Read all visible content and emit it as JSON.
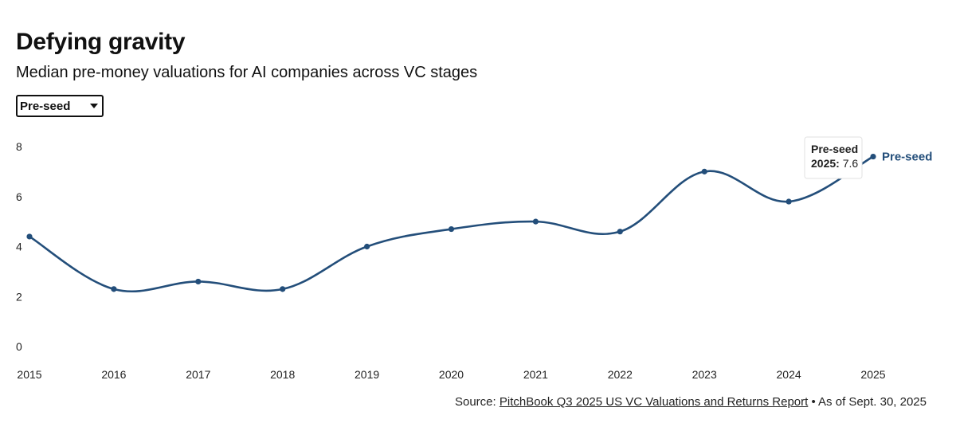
{
  "header": {
    "title": "Defying gravity",
    "subtitle": "Median pre-money valuations for AI companies across VC stages"
  },
  "selector": {
    "selected": "Pre-seed"
  },
  "colors": {
    "series": "#234e7a"
  },
  "chart_data": {
    "type": "line",
    "title": "Defying gravity",
    "subtitle": "Median pre-money valuations for AI companies across VC stages",
    "categories": [
      "2015",
      "2016",
      "2017",
      "2018",
      "2019",
      "2020",
      "2021",
      "2022",
      "2023",
      "2024",
      "2025"
    ],
    "series": [
      {
        "name": "Pre-seed",
        "values": [
          4.4,
          2.3,
          2.6,
          2.3,
          4.0,
          4.7,
          5.0,
          4.6,
          7.0,
          5.8,
          7.6
        ]
      }
    ],
    "y_ticks": [
      "0",
      "2",
      "4",
      "6",
      "8"
    ],
    "ylim": [
      0,
      8
    ],
    "xlabel": "",
    "ylabel": "",
    "grid": false,
    "tooltip": {
      "series": "Pre-seed",
      "year": "2025",
      "value": "7.6"
    }
  },
  "footer": {
    "source_prefix": "Source: ",
    "source_link": "PitchBook Q3 2025 US VC Valuations and Returns Report",
    "source_suffix": " • As of Sept. 30, 2025"
  }
}
